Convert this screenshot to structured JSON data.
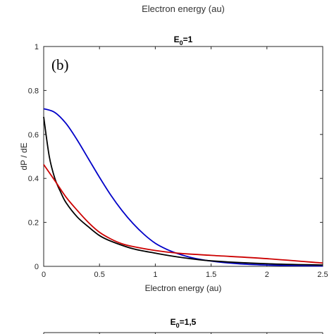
{
  "top_caption": "Electron energy (au)",
  "panel_tag": "(b)",
  "chart_data": [
    {
      "type": "line",
      "title": {
        "base": "E",
        "sub": "0",
        "rest": "=1"
      },
      "xlabel": "Electron energy (au)",
      "ylabel": "dP / dE",
      "xlim": [
        0,
        2.5
      ],
      "ylim": [
        0,
        1
      ],
      "xticks": [
        0,
        0.5,
        1,
        1.5,
        2,
        2.5
      ],
      "xtick_labels": [
        "0",
        "0.5",
        "1",
        "1.5",
        "2",
        "2.5"
      ],
      "yticks": [
        0,
        0.2,
        0.4,
        0.6,
        0.8,
        1
      ],
      "ytick_labels": [
        "0",
        "0.2",
        "0.4",
        "0.6",
        "0.8",
        "1"
      ],
      "grid": false,
      "series": [
        {
          "color": "#0000c8",
          "x": [
            0,
            0.1,
            0.2,
            0.3,
            0.4,
            0.5,
            0.6,
            0.7,
            0.8,
            0.9,
            1.0,
            1.1,
            1.2,
            1.3,
            1.4,
            1.5,
            1.6,
            1.8,
            2.0,
            2.2,
            2.5
          ],
          "y": [
            0.717,
            0.7,
            0.65,
            0.575,
            0.49,
            0.405,
            0.325,
            0.255,
            0.195,
            0.145,
            0.105,
            0.078,
            0.058,
            0.043,
            0.032,
            0.024,
            0.018,
            0.01,
            0.006,
            0.004,
            0.002
          ]
        },
        {
          "color": "#000000",
          "x": [
            0,
            0.05,
            0.1,
            0.15,
            0.2,
            0.3,
            0.4,
            0.5,
            0.6,
            0.8,
            1.0,
            1.2,
            1.5,
            2.0,
            2.5
          ],
          "y": [
            0.68,
            0.5,
            0.4,
            0.34,
            0.29,
            0.225,
            0.18,
            0.14,
            0.115,
            0.08,
            0.06,
            0.043,
            0.025,
            0.012,
            0.006
          ]
        },
        {
          "color": "#cc0000",
          "x": [
            0,
            0.1,
            0.2,
            0.3,
            0.4,
            0.5,
            0.6,
            0.7,
            0.8,
            1.0,
            1.2,
            1.5,
            2.0,
            2.5
          ],
          "y": [
            0.463,
            0.39,
            0.315,
            0.255,
            0.2,
            0.155,
            0.125,
            0.103,
            0.09,
            0.072,
            0.06,
            0.05,
            0.035,
            0.015
          ]
        }
      ]
    },
    {
      "type": "line",
      "title": {
        "base": "E",
        "sub": "0",
        "rest": "=1,5"
      },
      "partial": true
    }
  ]
}
